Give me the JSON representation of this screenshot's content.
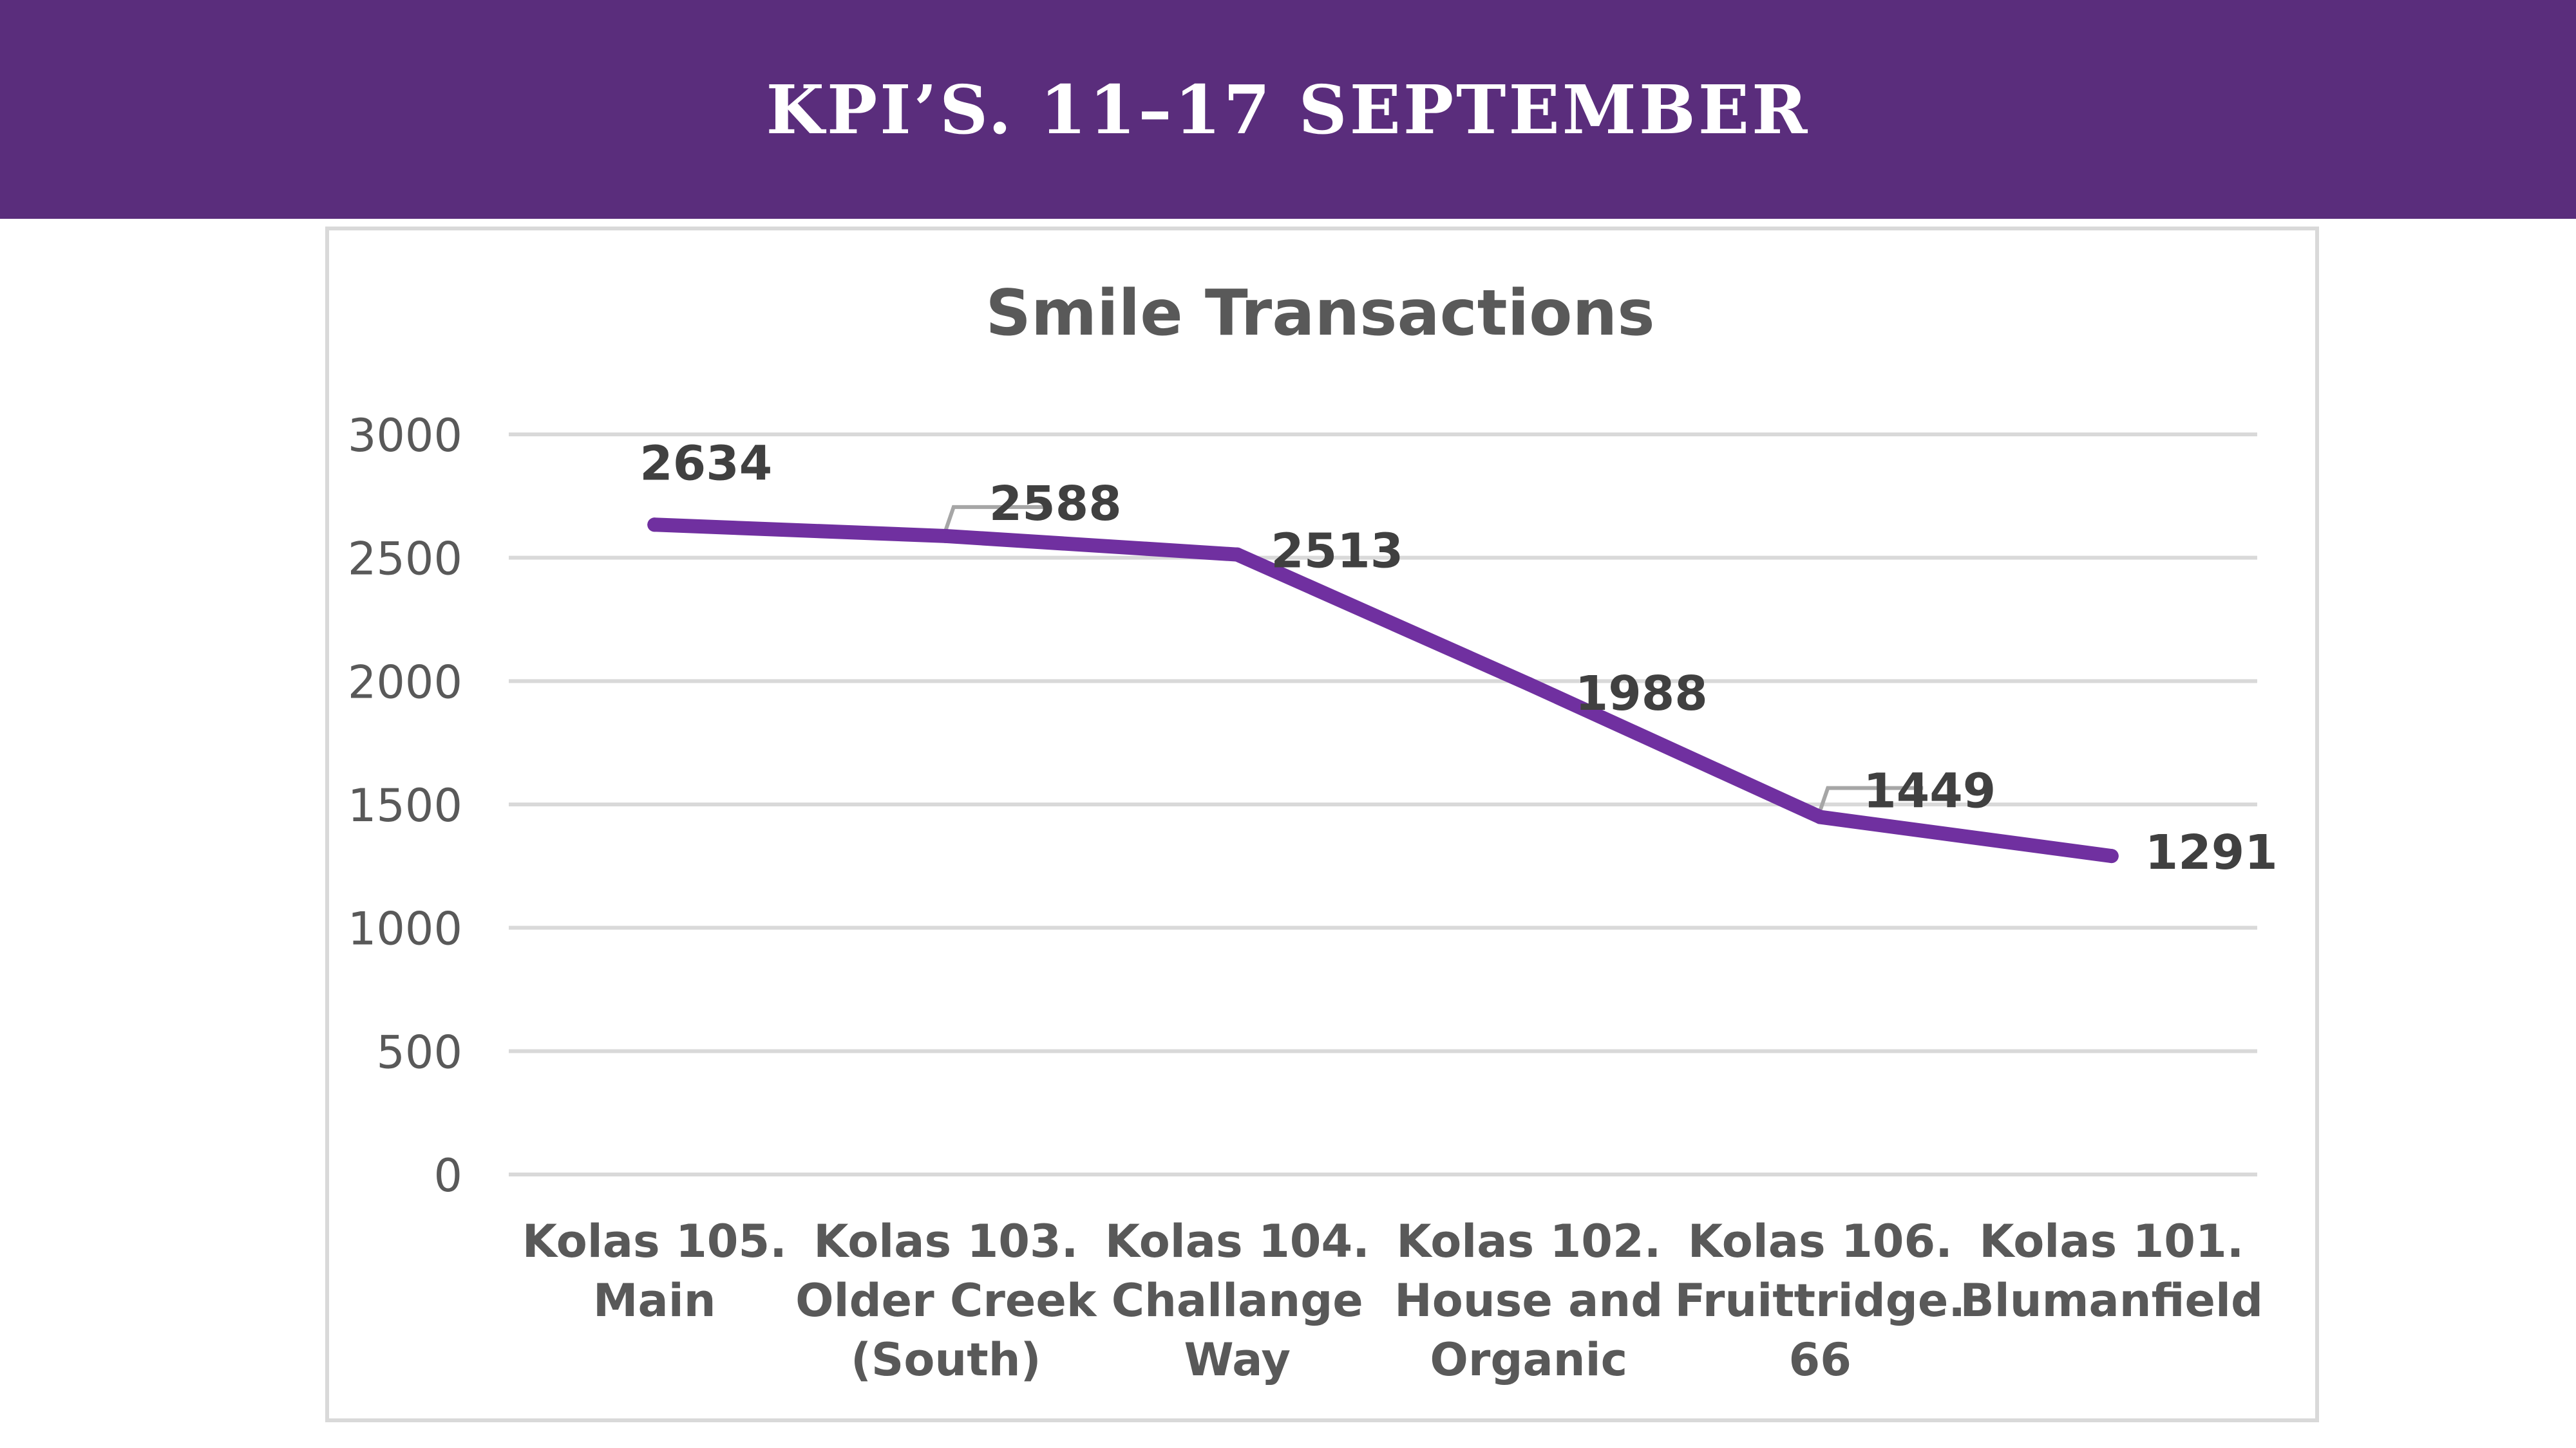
{
  "header": {
    "title": "KPI’S. 11–17  SEPTEMBER"
  },
  "colors": {
    "banner": "#5a2d7c",
    "line": "#7030a0",
    "grid": "#d9d9d9",
    "text": "#595959"
  },
  "chart_data": {
    "type": "line",
    "title": "Smile Transactions",
    "categories": [
      [
        "Kolas 105.",
        "Main"
      ],
      [
        "Kolas 103.",
        "Older Creek",
        "(South)"
      ],
      [
        "Kolas 104.",
        "Challange",
        "Way"
      ],
      [
        "Kolas 102.",
        "House and",
        "Organic"
      ],
      [
        "Kolas 106.",
        "Fruittridge.",
        "66"
      ],
      [
        "Kolas 101.",
        "Blumanfield"
      ]
    ],
    "values": [
      2634,
      2588,
      2513,
      1988,
      1449,
      1291
    ],
    "data_labels": [
      "2634",
      "2588",
      "2513",
      "1988",
      "1449",
      "1291"
    ],
    "yticks": [
      "0",
      "500",
      "1000",
      "1500",
      "2000",
      "2500",
      "3000"
    ],
    "ylim": [
      0,
      3000
    ],
    "grid": true,
    "legend": "none"
  }
}
